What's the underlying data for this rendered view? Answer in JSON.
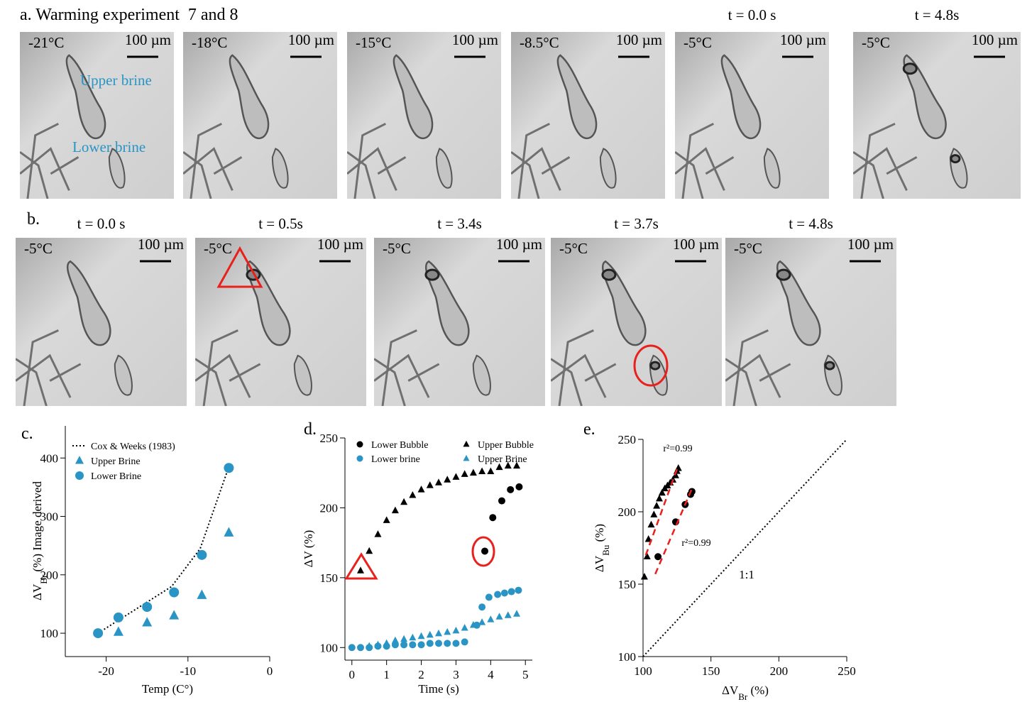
{
  "panel_a": {
    "label": "a. Warming experiment  7 and 8",
    "images": [
      {
        "temp": "-21°C",
        "scale": "100 µm",
        "upper": "Upper brine",
        "lower": "Lower brine"
      },
      {
        "temp": "-18°C",
        "scale": "100 µm"
      },
      {
        "temp": "-15°C",
        "scale": "100 µm"
      },
      {
        "temp": "-8.5°C",
        "scale": "100 µm"
      },
      {
        "time": "t = 0.0 s",
        "temp": "-5°C",
        "scale": "100 µm"
      },
      {
        "time": "t = 4.8s",
        "temp": "-5°C",
        "scale": "100 µm"
      }
    ]
  },
  "panel_b": {
    "label": "b.",
    "images": [
      {
        "time": "t = 0.0 s",
        "temp": "-5°C",
        "scale": "100 µm"
      },
      {
        "time": "t = 0.5s",
        "temp": "-5°C",
        "scale": "100 µm"
      },
      {
        "time": "t = 3.4s",
        "temp": "-5°C",
        "scale": "100 µm"
      },
      {
        "time": "t = 3.7s",
        "temp": "-5°C",
        "scale": "100 µm"
      },
      {
        "time": "t = 4.8s",
        "temp": "-5°C",
        "scale": "100 µm"
      }
    ]
  },
  "chart_data": [
    {
      "type": "scatter",
      "panel_label": "c.",
      "xlabel": "Temp (C°)",
      "ylabel": {
        "main": "ΔV",
        "sub": "Br",
        "rest": " (%) Image derived"
      },
      "xlim": [
        -25,
        0
      ],
      "ylim": [
        60,
        455
      ],
      "xticks": [
        -20,
        -10,
        0
      ],
      "yticks": [
        100,
        200,
        300,
        400
      ],
      "legend": "upper left",
      "series": [
        {
          "name": "Cox & Weeks (1983)",
          "marker": "dotted-line",
          "color": "#000000",
          "x": [
            -21,
            -12,
            -8.5,
            -5
          ],
          "y": [
            100,
            180,
            245,
            385
          ]
        },
        {
          "name": "Upper Brine",
          "marker": "triangle",
          "color": "#2a95c5",
          "x": [
            -18.5,
            -15,
            -11.7,
            -8.3,
            -5
          ],
          "y": [
            102,
            118,
            130,
            165,
            272
          ]
        },
        {
          "name": "Lower Brine",
          "marker": "circle",
          "color": "#2a95c5",
          "x": [
            -21,
            -18.5,
            -15,
            -11.7,
            -8.3,
            -5
          ],
          "y": [
            100,
            127,
            145,
            170,
            234,
            383
          ]
        }
      ]
    },
    {
      "type": "scatter",
      "panel_label": "d.",
      "xlabel": "Time (s)",
      "ylabel": "ΔV (%)",
      "xlim": [
        -0.2,
        5.2
      ],
      "ylim": [
        91,
        250
      ],
      "xticks": [
        0,
        1,
        2,
        3,
        4,
        5
      ],
      "yticks": [
        100,
        150,
        200,
        250
      ],
      "legend": "upper center",
      "series": [
        {
          "name": "Lower Bubble",
          "marker": "circle",
          "color": "#000000",
          "x": [
            3.83,
            4.06,
            4.32,
            4.57,
            4.82
          ],
          "y": [
            169,
            193,
            205,
            213,
            215
          ]
        },
        {
          "name": "Upper Bubble",
          "marker": "triangle",
          "color": "#000000",
          "x": [
            0.25,
            0.5,
            0.75,
            1,
            1.25,
            1.5,
            1.75,
            2,
            2.25,
            2.5,
            2.75,
            3,
            3.25,
            3.5,
            3.75,
            4,
            4.25,
            4.5,
            4.75
          ],
          "y": [
            155,
            169,
            181,
            191,
            198,
            204,
            209,
            213,
            216,
            218,
            220,
            222,
            224,
            225,
            226,
            226,
            229,
            230,
            230
          ]
        },
        {
          "name": "Lower brine",
          "marker": "circle",
          "color": "#2a95c5",
          "x": [
            0,
            0.25,
            0.5,
            0.75,
            1,
            1.25,
            1.5,
            1.75,
            2,
            2.25,
            2.5,
            2.75,
            3,
            3.25,
            3.6,
            3.75,
            3.95,
            4.2,
            4.4,
            4.6,
            4.8
          ],
          "y": [
            100,
            100,
            100,
            101,
            101,
            102,
            102,
            102,
            102,
            103,
            103,
            103,
            103,
            104,
            116,
            129,
            136,
            138,
            139,
            140,
            141
          ]
        },
        {
          "name": "Upper Brine",
          "marker": "triangle",
          "color": "#2a95c5",
          "x": [
            0.5,
            0.75,
            1,
            1.25,
            1.5,
            1.75,
            2,
            2.25,
            2.5,
            2.75,
            3,
            3.25,
            3.5,
            3.75,
            4,
            4.25,
            4.5,
            4.75
          ],
          "y": [
            101,
            102,
            103,
            105,
            106,
            107,
            108,
            109,
            110,
            111,
            112,
            114,
            116,
            118,
            120,
            122,
            123,
            124
          ]
        }
      ]
    },
    {
      "type": "scatter",
      "panel_label": "e.",
      "xlabel": {
        "main": "ΔV",
        "sub": "Br",
        "rest": " (%)"
      },
      "ylabel": {
        "main": "ΔV",
        "sub": "Bu",
        "rest": " (%)"
      },
      "xlim": [
        100,
        250
      ],
      "ylim": [
        100,
        250
      ],
      "xticks": [
        100,
        150,
        200,
        250
      ],
      "yticks": [
        100,
        150,
        200,
        250
      ],
      "annotations": [
        "r²=0.99",
        "r²=0.99",
        "1:1"
      ],
      "series": [
        {
          "marker": "triangle",
          "color": "#000000",
          "x": [
            101,
            103,
            104,
            106,
            108,
            110,
            112,
            114,
            116,
            118,
            120,
            122,
            124,
            125,
            126
          ],
          "y": [
            155,
            169,
            181,
            191,
            198,
            204,
            209,
            213,
            216,
            218,
            220,
            222,
            225,
            228,
            230
          ]
        },
        {
          "marker": "circle",
          "color": "#000000",
          "x": [
            111,
            124,
            131,
            135,
            136
          ],
          "y": [
            169,
            193,
            205,
            212,
            214
          ]
        },
        {
          "marker": "dashed-line",
          "color": "#e8211c",
          "x": [
            102,
            126
          ],
          "y": [
            170,
            232
          ]
        },
        {
          "marker": "dashed-line",
          "color": "#e8211c",
          "x": [
            109,
            136
          ],
          "y": [
            157,
            216
          ]
        },
        {
          "marker": "dotted-line",
          "color": "#000000",
          "x": [
            100,
            250
          ],
          "y": [
            100,
            250
          ]
        }
      ]
    }
  ]
}
